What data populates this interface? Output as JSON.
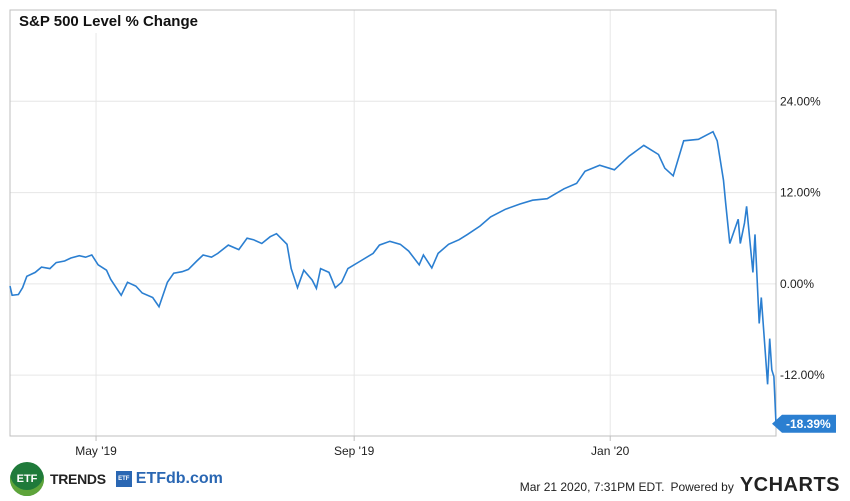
{
  "colors": {
    "line": "#2b7fd1",
    "grid": "#e6e6e6",
    "border": "#bfbfbf",
    "end_label_bg": "#2b7fd1",
    "end_label_text": "#ffffff"
  },
  "footer": {
    "etftrends_badge": "ETF",
    "etftrends_text": "TRENDS",
    "etfdb_badge": "ETF",
    "etfdb_text": "ETFdb.com",
    "timestamp": "Mar 21 2020, 7:31PM EDT.",
    "powered_by": "Powered by",
    "ycharts": "YCHARTS"
  },
  "chart_data": {
    "type": "line",
    "title": "S&P 500 Level % Change",
    "xlabel": "",
    "ylabel": "",
    "y_tick_values": [
      24,
      12,
      0,
      -12
    ],
    "y_tick_labels": [
      "24.00%",
      "12.00%",
      "0.00%",
      "-12.00%"
    ],
    "ylim": [
      -20,
      36
    ],
    "xlim": [
      "2019-03-21",
      "2020-03-20"
    ],
    "x_ticks": [
      {
        "date": "2019-05-01",
        "label": "May '19"
      },
      {
        "date": "2019-09-01",
        "label": "Sep '19"
      },
      {
        "date": "2020-01-01",
        "label": "Jan '20"
      }
    ],
    "grid": true,
    "end_label": "-18.39%",
    "series": [
      {
        "x": [
          "2019-03-21",
          "2019-03-22",
          "2019-03-25",
          "2019-03-27",
          "2019-03-29",
          "2019-04-02",
          "2019-04-05",
          "2019-04-09",
          "2019-04-12",
          "2019-04-16",
          "2019-04-19",
          "2019-04-23",
          "2019-04-26",
          "2019-04-29",
          "2019-05-02",
          "2019-05-06",
          "2019-05-08",
          "2019-05-13",
          "2019-05-16",
          "2019-05-20",
          "2019-05-23",
          "2019-05-28",
          "2019-05-31",
          "2019-06-04",
          "2019-06-07",
          "2019-06-11",
          "2019-06-14",
          "2019-06-18",
          "2019-06-21",
          "2019-06-25",
          "2019-06-28",
          "2019-07-03",
          "2019-07-08",
          "2019-07-12",
          "2019-07-15",
          "2019-07-19",
          "2019-07-23",
          "2019-07-26",
          "2019-07-31",
          "2019-08-02",
          "2019-08-05",
          "2019-08-08",
          "2019-08-12",
          "2019-08-14",
          "2019-08-16",
          "2019-08-20",
          "2019-08-23",
          "2019-08-26",
          "2019-08-29",
          "2019-09-04",
          "2019-09-10",
          "2019-09-13",
          "2019-09-18",
          "2019-09-23",
          "2019-09-27",
          "2019-10-02",
          "2019-10-04",
          "2019-10-08",
          "2019-10-11",
          "2019-10-16",
          "2019-10-21",
          "2019-10-25",
          "2019-10-31",
          "2019-11-05",
          "2019-11-12",
          "2019-11-19",
          "2019-11-25",
          "2019-12-02",
          "2019-12-05",
          "2019-12-10",
          "2019-12-16",
          "2019-12-20",
          "2019-12-27",
          "2020-01-03",
          "2020-01-10",
          "2020-01-17",
          "2020-01-24",
          "2020-01-27",
          "2020-01-31",
          "2020-02-05",
          "2020-02-12",
          "2020-02-19",
          "2020-02-21",
          "2020-02-24",
          "2020-02-25",
          "2020-02-27",
          "2020-03-02",
          "2020-03-03",
          "2020-03-05",
          "2020-03-06",
          "2020-03-09",
          "2020-03-10",
          "2020-03-12",
          "2020-03-13",
          "2020-03-16",
          "2020-03-17",
          "2020-03-18",
          "2020-03-19",
          "2020-03-20"
        ],
        "values": [
          -0.3,
          -1.5,
          -1.4,
          -0.5,
          1.0,
          1.5,
          2.2,
          2.0,
          2.8,
          3.0,
          3.4,
          3.7,
          3.5,
          3.8,
          2.5,
          1.8,
          0.6,
          -1.5,
          0.2,
          -0.3,
          -1.2,
          -1.8,
          -3.0,
          0.2,
          1.4,
          1.6,
          1.9,
          3.0,
          3.8,
          3.5,
          4.0,
          5.1,
          4.5,
          6.0,
          5.8,
          5.3,
          6.2,
          6.6,
          5.2,
          2.0,
          -0.5,
          1.8,
          0.5,
          -0.6,
          2.0,
          1.5,
          -0.5,
          0.2,
          2.0,
          3.0,
          4.0,
          5.1,
          5.6,
          5.2,
          4.3,
          2.5,
          3.8,
          2.1,
          4.0,
          5.2,
          5.8,
          6.5,
          7.6,
          8.8,
          9.8,
          10.5,
          11.0,
          11.2,
          11.7,
          12.5,
          13.2,
          14.8,
          15.6,
          15.0,
          16.8,
          18.2,
          17.0,
          15.2,
          14.2,
          18.8,
          19.0,
          20.0,
          18.8,
          13.6,
          10.7,
          5.3,
          8.5,
          5.3,
          8.0,
          10.2,
          1.5,
          6.5,
          -5.2,
          -1.8,
          -13.2,
          -7.2,
          -11.3,
          -12.2,
          -18.39
        ]
      }
    ]
  }
}
